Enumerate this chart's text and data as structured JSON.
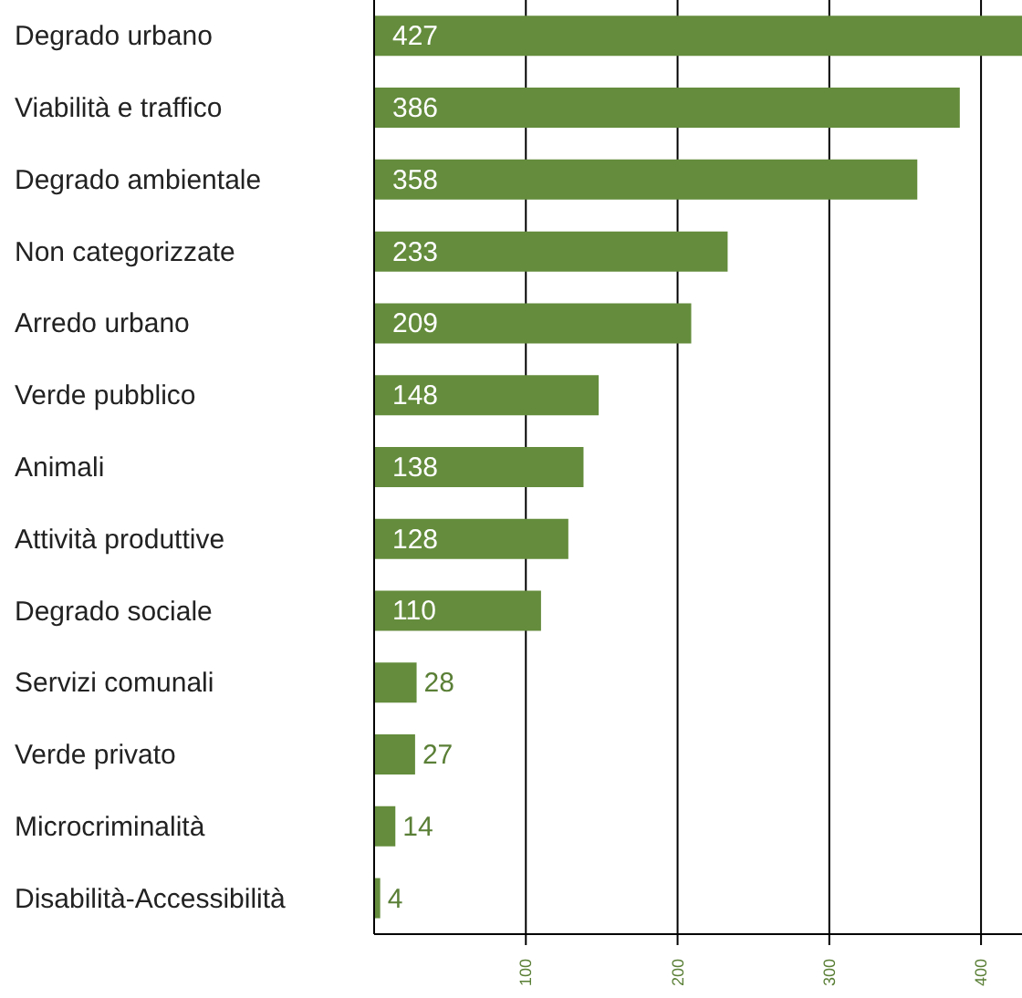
{
  "chart_data": {
    "type": "bar",
    "orientation": "horizontal",
    "categories": [
      "Degrado urbano",
      "Viabilità e traffico",
      "Degrado ambientale",
      "Non categorizzate",
      "Arredo urbano",
      "Verde pubblico",
      "Animali",
      "Attività produttive",
      "Degrado sociale",
      "Servizi comunali",
      "Verde privato",
      "Microcriminalità",
      "Disabilità-Accessibilità"
    ],
    "values": [
      427,
      386,
      358,
      233,
      209,
      148,
      138,
      128,
      110,
      28,
      27,
      14,
      4
    ],
    "color": "#648c3c",
    "xlim": [
      0,
      427
    ],
    "xticks": [
      100,
      200,
      300,
      400
    ],
    "grid": "x",
    "data_labels": true
  }
}
